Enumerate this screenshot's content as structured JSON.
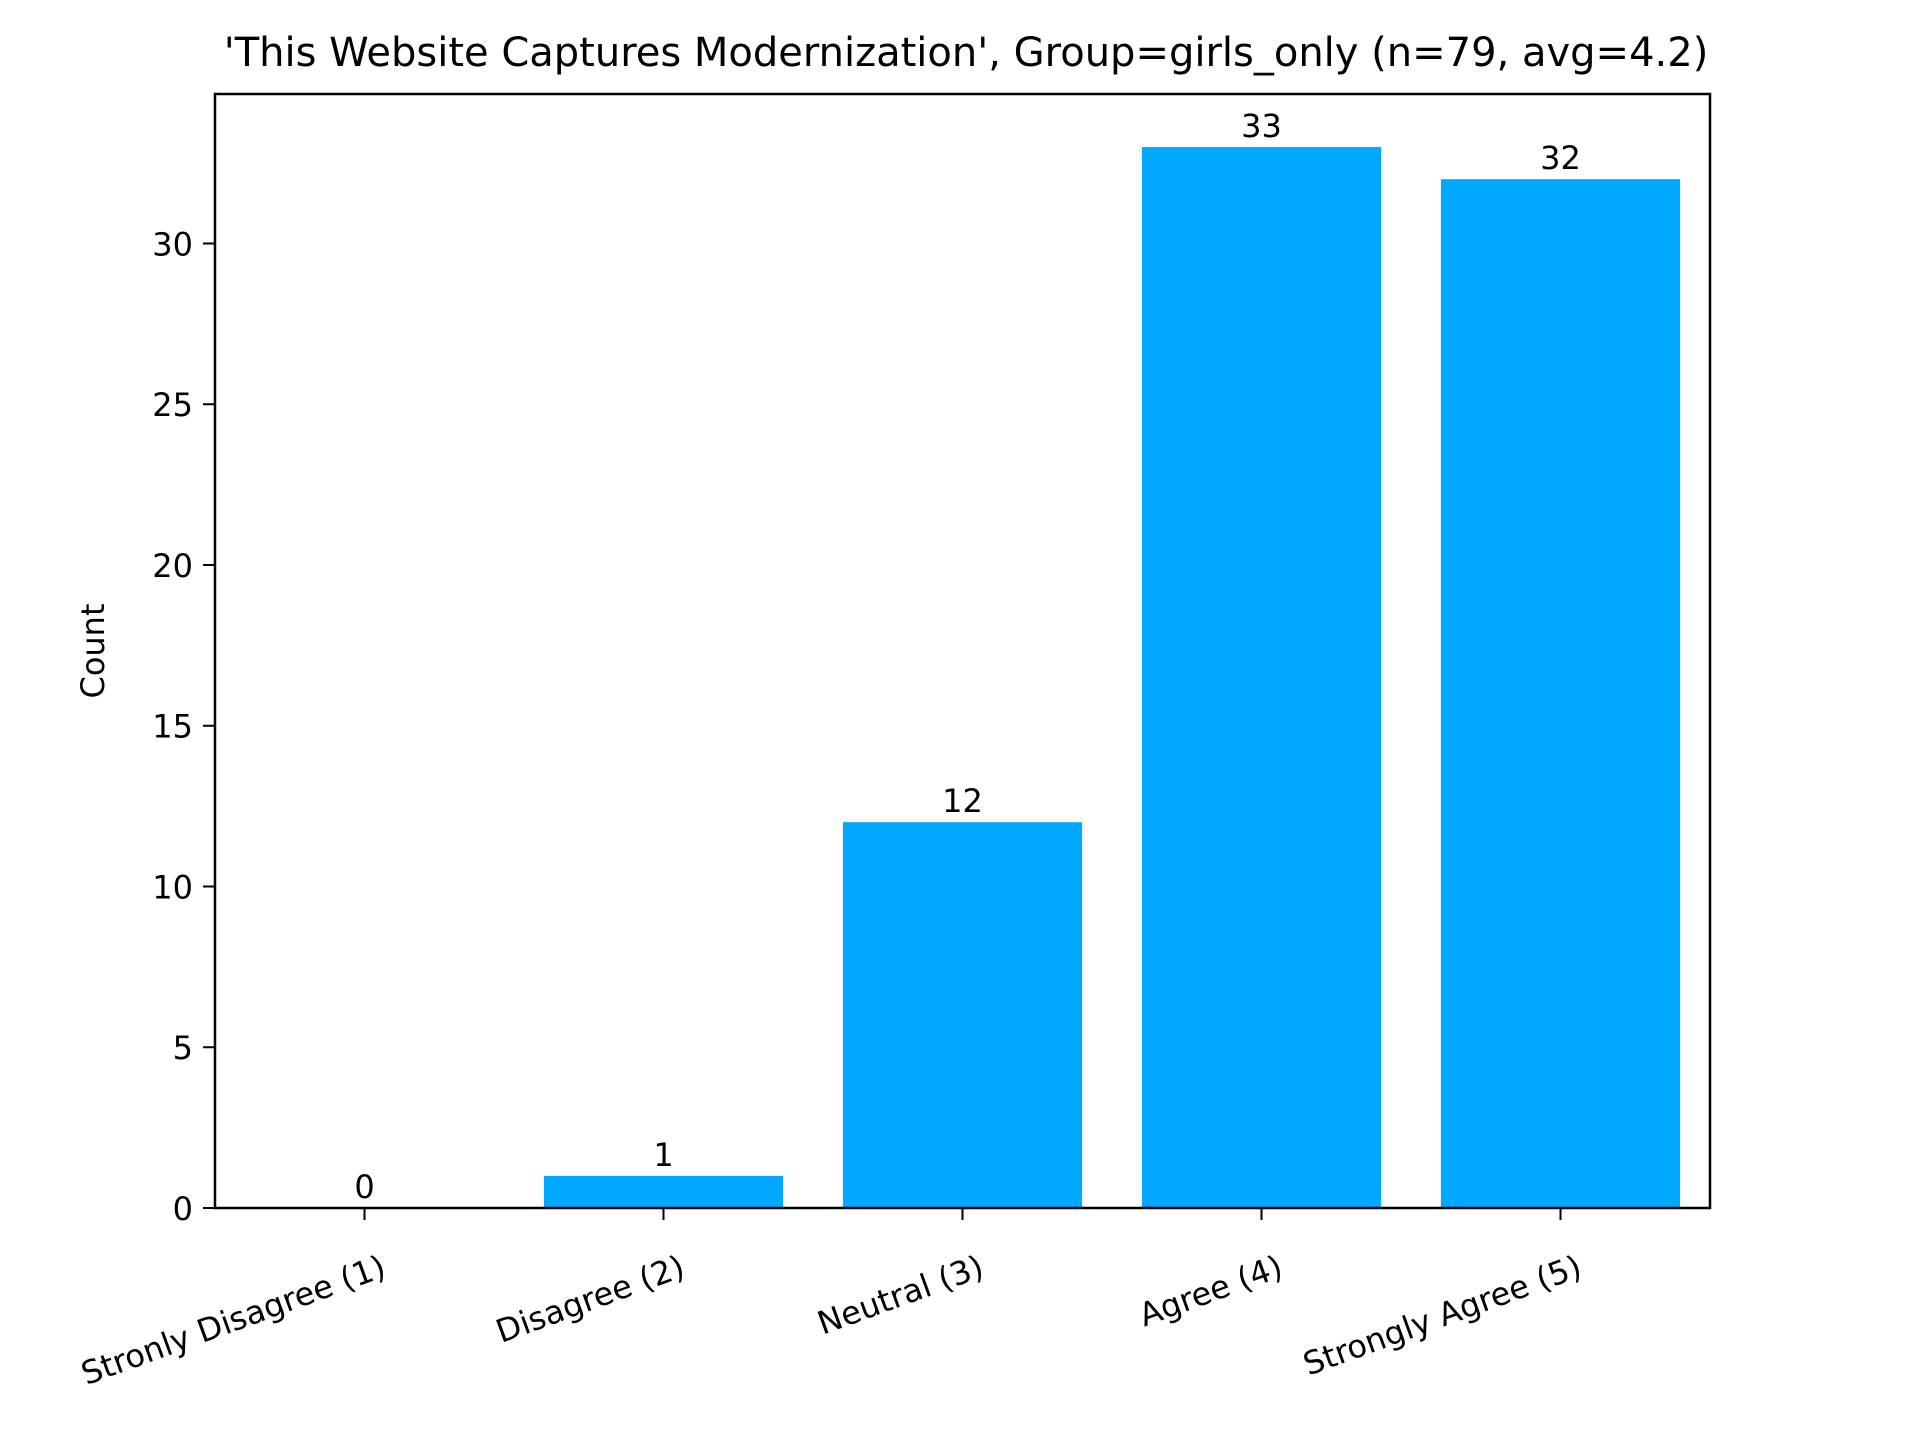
{
  "chart_data": {
    "type": "bar",
    "title": "'This Website Captures Modernization', Group=girls_only (n=79, avg=4.2)",
    "xlabel": "",
    "ylabel": "Count",
    "categories": [
      "Stronly Disagree (1)",
      "Disagree (2)",
      "Neutral (3)",
      "Agree (4)",
      "Strongly Agree (5)"
    ],
    "values": [
      0,
      1,
      12,
      33,
      32
    ],
    "data_labels": [
      "0",
      "1",
      "12",
      "33",
      "32"
    ],
    "ylim": [
      0,
      34.65
    ],
    "yticks": [
      0,
      5,
      10,
      15,
      20,
      25,
      30
    ],
    "ytick_labels": [
      "0",
      "5",
      "10",
      "15",
      "20",
      "25",
      "30"
    ],
    "grid": false,
    "bar_color": "#00a9ff"
  }
}
